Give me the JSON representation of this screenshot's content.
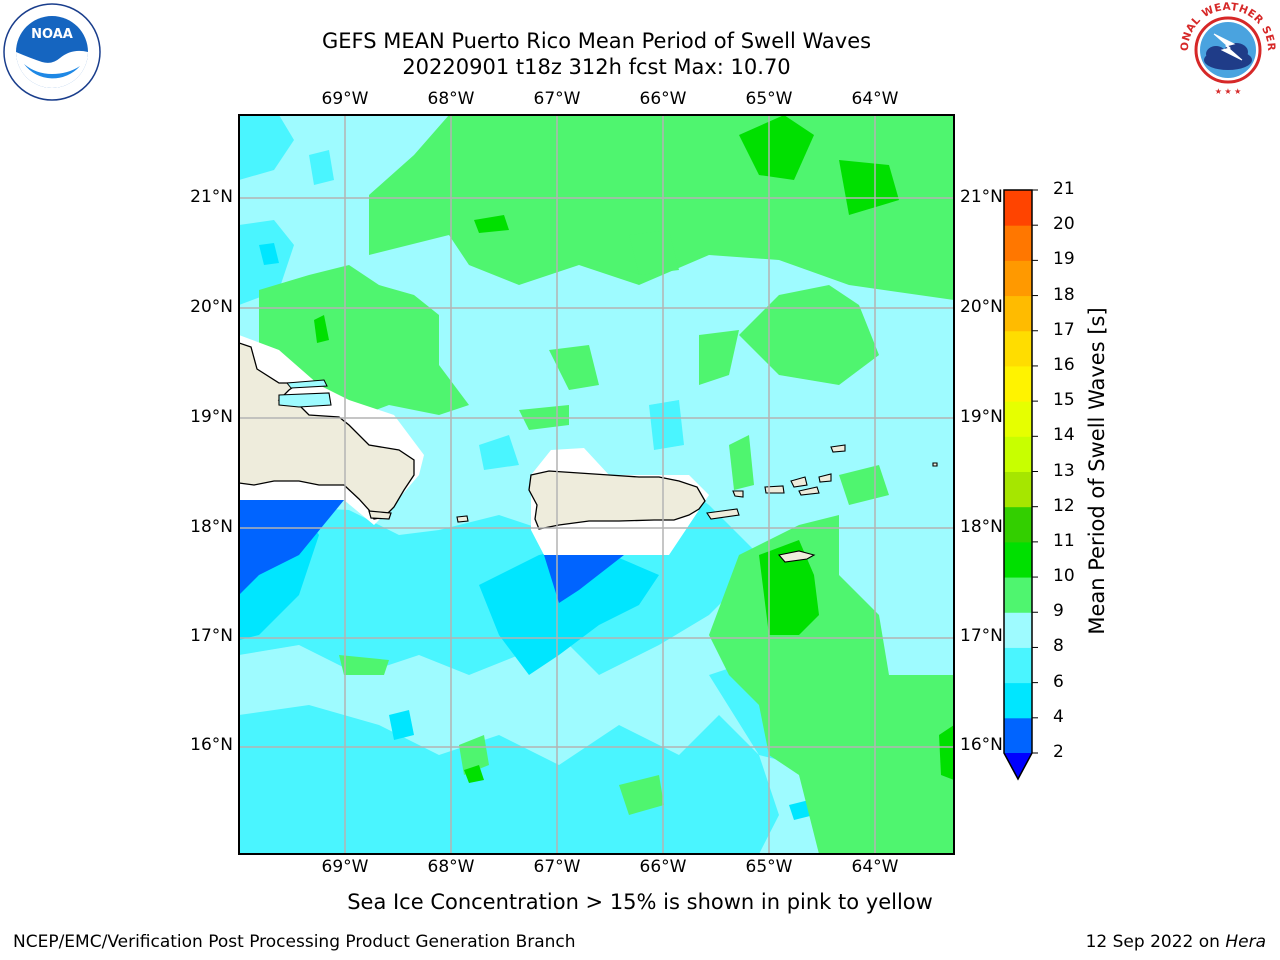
{
  "title": {
    "line1": "GEFS MEAN Puerto Rico Mean Period of Swell Waves",
    "line2": "20220901 t18z 312h fcst   Max: 10.70"
  },
  "map": {
    "lon_labels": [
      "69°W",
      "68°W",
      "67°W",
      "66°W",
      "65°W",
      "64°W"
    ],
    "lat_labels": [
      "21°N",
      "20°N",
      "19°N",
      "18°N",
      "17°N",
      "16°N"
    ],
    "colors": {
      "land": "#eeecdc",
      "masked": "#ffffff",
      "gridline": "#b3b3b3",
      "coastline": "#000000"
    }
  },
  "colorbar": {
    "title": "Mean Period of Swell Waves [s]",
    "ticks": [
      "2",
      "4",
      "6",
      "8",
      "9",
      "10",
      "11",
      "12",
      "13",
      "14",
      "15",
      "16",
      "17",
      "18",
      "19",
      "20",
      "21"
    ],
    "colors": [
      "#0064ff",
      "#00e6ff",
      "#4af5ff",
      "#9efbff",
      "#4ff56f",
      "#00e000",
      "#33cf00",
      "#a6e600",
      "#c8ff00",
      "#e6ff00",
      "#fff300",
      "#ffdd00",
      "#ffbb00",
      "#ff9900",
      "#ff7700",
      "#ff4400",
      "#ff0000"
    ],
    "under_color": "#0000ff"
  },
  "footnote": "Sea Ice Concentration > 15% is shown in pink to yellow",
  "credit_left": "NCEP/EMC/Verification Post Processing Product Generation Branch",
  "credit_right_date": "12 Sep 2022 on",
  "credit_right_host": "Hera",
  "logos": {
    "noaa": "NOAA",
    "nws": "NATIONAL WEATHER SERVICE"
  }
}
